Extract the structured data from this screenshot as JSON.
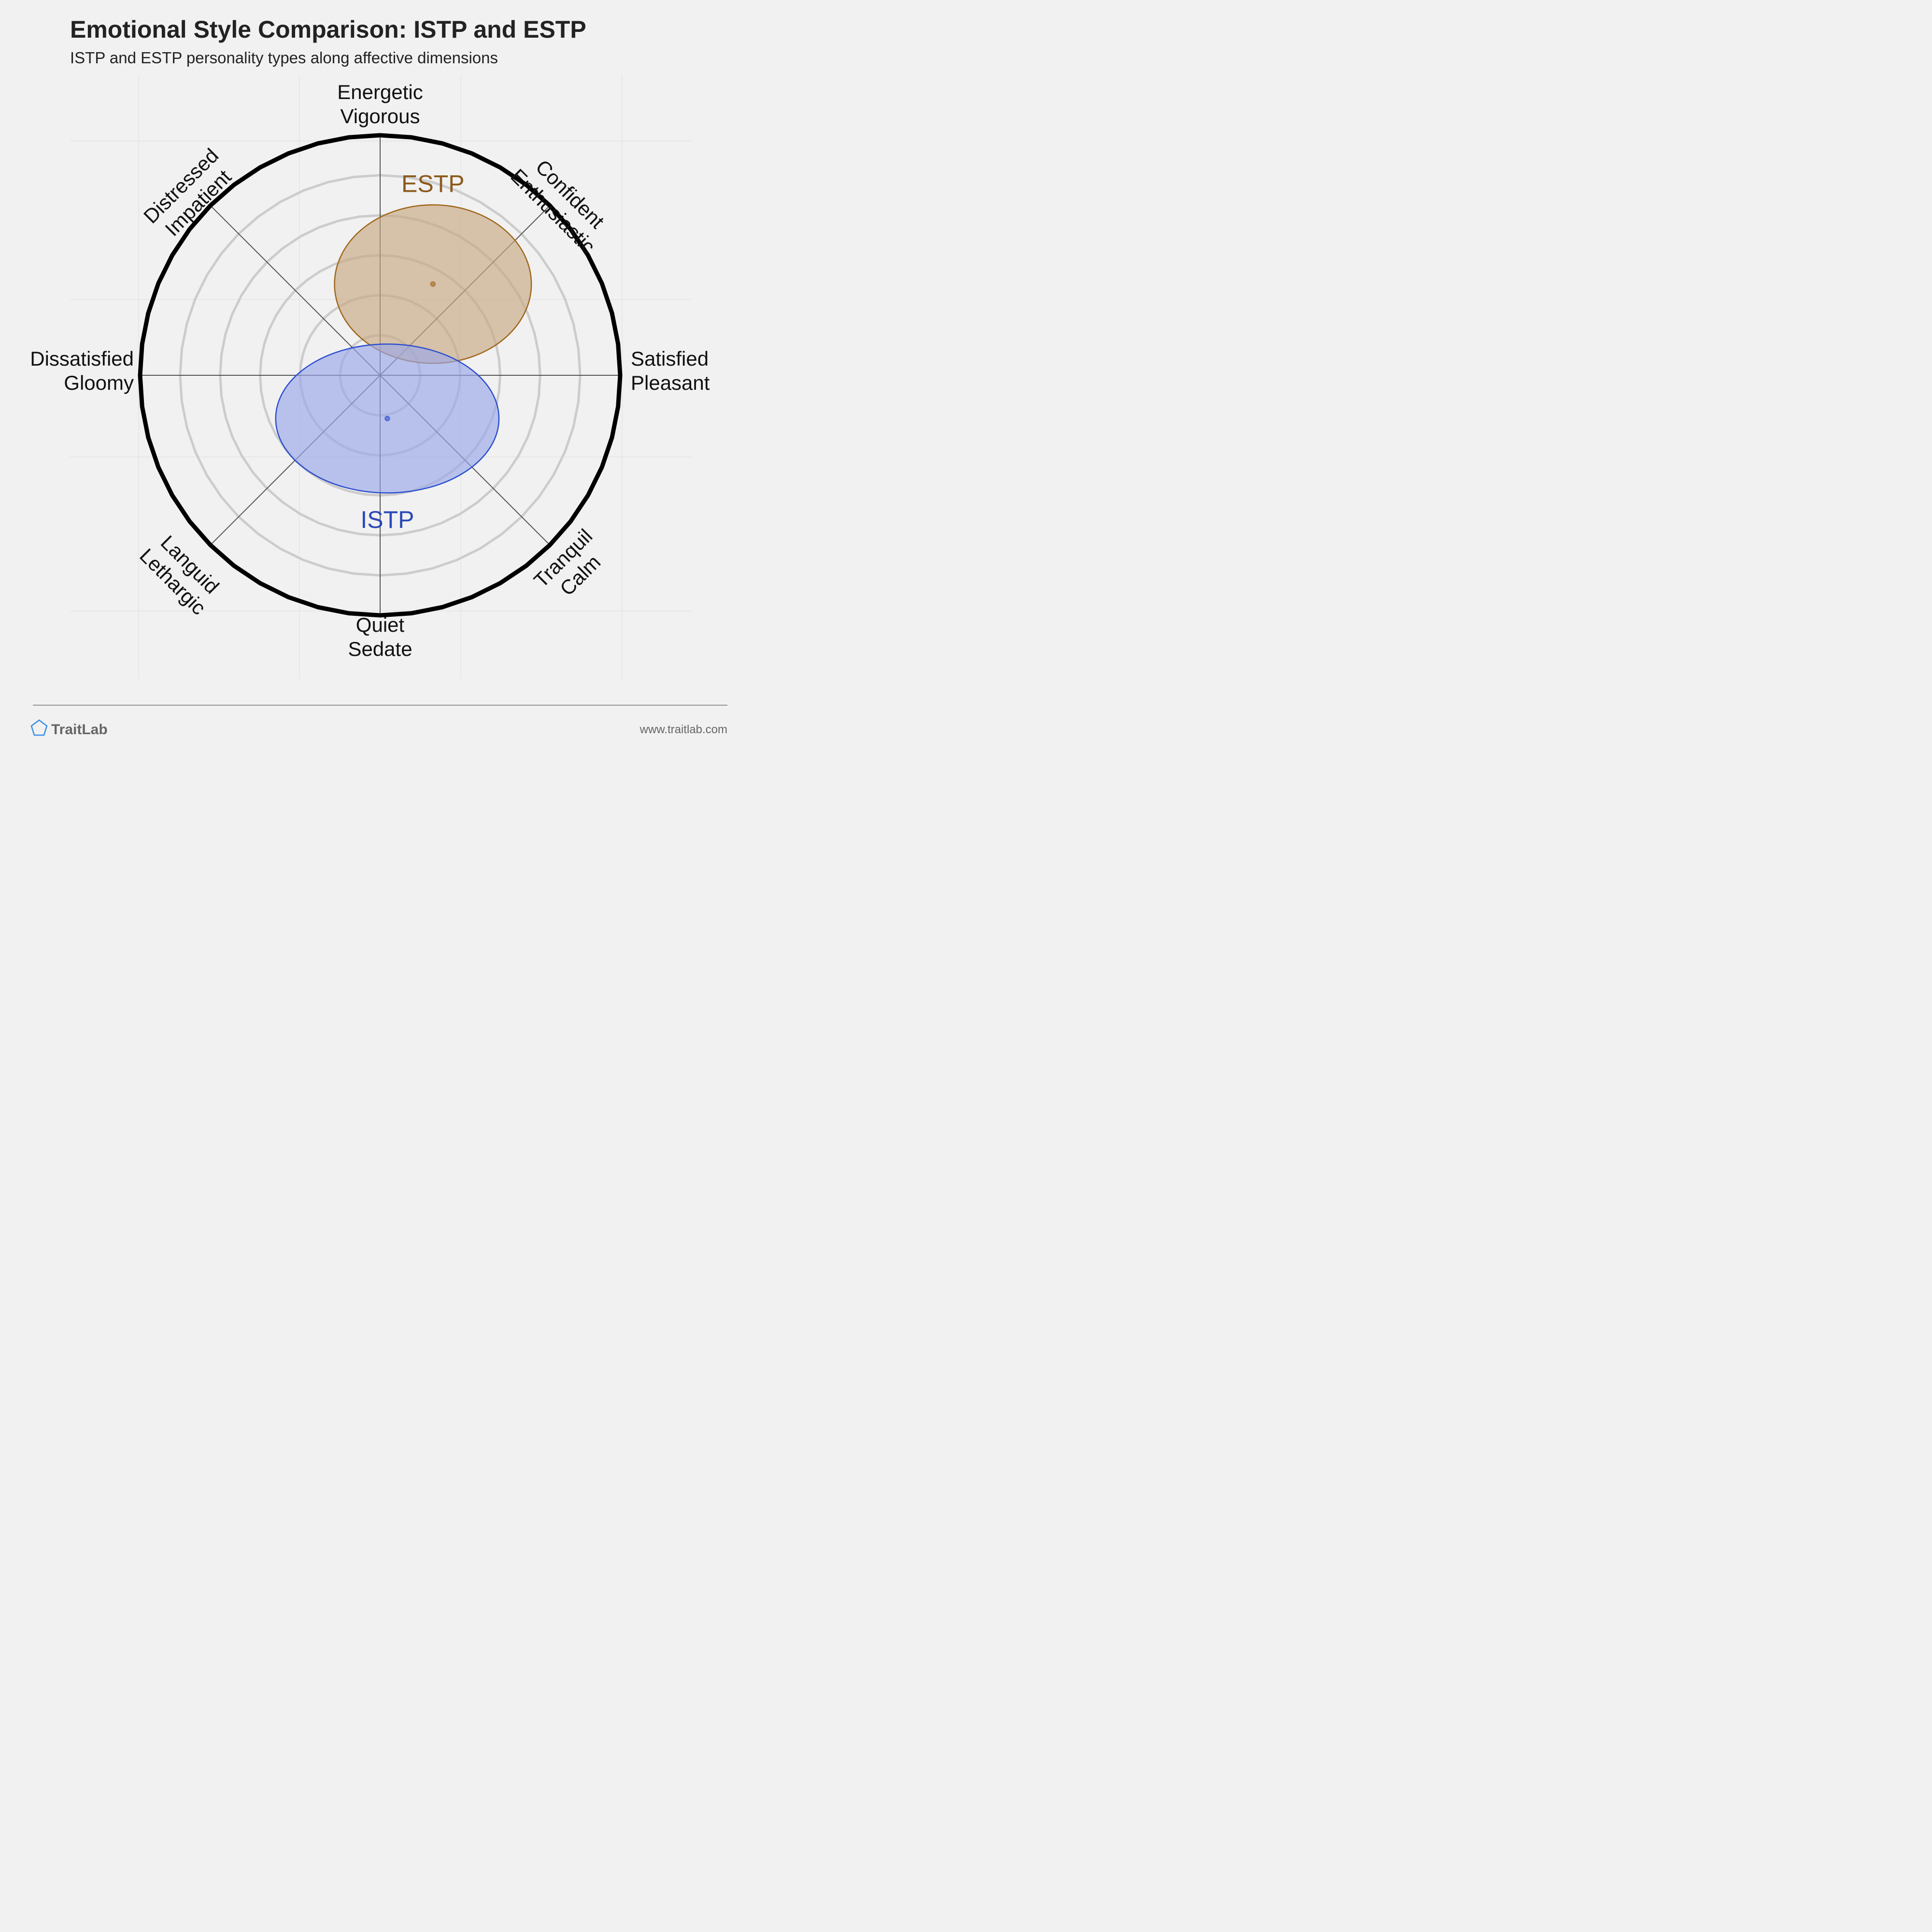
{
  "title": "Emotional Style Comparison: ISTP and ESTP",
  "subtitle": "ISTP and ESTP personality types along affective dimensions",
  "chart_data": {
    "type": "circumplex",
    "axes": [
      {
        "angle_deg": 90,
        "lines": [
          "Energetic",
          "Vigorous"
        ]
      },
      {
        "angle_deg": 45,
        "lines": [
          "Confident",
          "Enthusiastic"
        ]
      },
      {
        "angle_deg": 0,
        "lines": [
          "Satisfied",
          "Pleasant"
        ]
      },
      {
        "angle_deg": -45,
        "lines": [
          "Tranquil",
          "Calm"
        ]
      },
      {
        "angle_deg": -90,
        "lines": [
          "Quiet",
          "Sedate"
        ]
      },
      {
        "angle_deg": -135,
        "lines": [
          "Languid",
          "Lethargic"
        ]
      },
      {
        "angle_deg": 180,
        "lines": [
          "Dissatisfied",
          "Gloomy"
        ]
      },
      {
        "angle_deg": 135,
        "lines": [
          "Distressed",
          "Impatient"
        ]
      }
    ],
    "range": [
      -1,
      1
    ],
    "rings": 6,
    "series": [
      {
        "name": "ESTP",
        "x": 0.22,
        "y": 0.38,
        "rx": 0.41,
        "ry": 0.33,
        "fill": "#c8a882",
        "stroke": "#a0661a",
        "label_color": "#8b5a1c",
        "label_pos": [
          0.22,
          0.8
        ]
      },
      {
        "name": "ISTP",
        "x": 0.03,
        "y": -0.18,
        "rx": 0.465,
        "ry": 0.31,
        "fill": "#9aa8e8",
        "stroke": "#2b4ecf",
        "label_color": "#2c48b8",
        "label_pos": [
          0.03,
          -0.6
        ]
      }
    ]
  },
  "footer": {
    "brand": "TraitLab",
    "url": "www.traitlab.com",
    "brand_color": "#3a8ee6"
  }
}
